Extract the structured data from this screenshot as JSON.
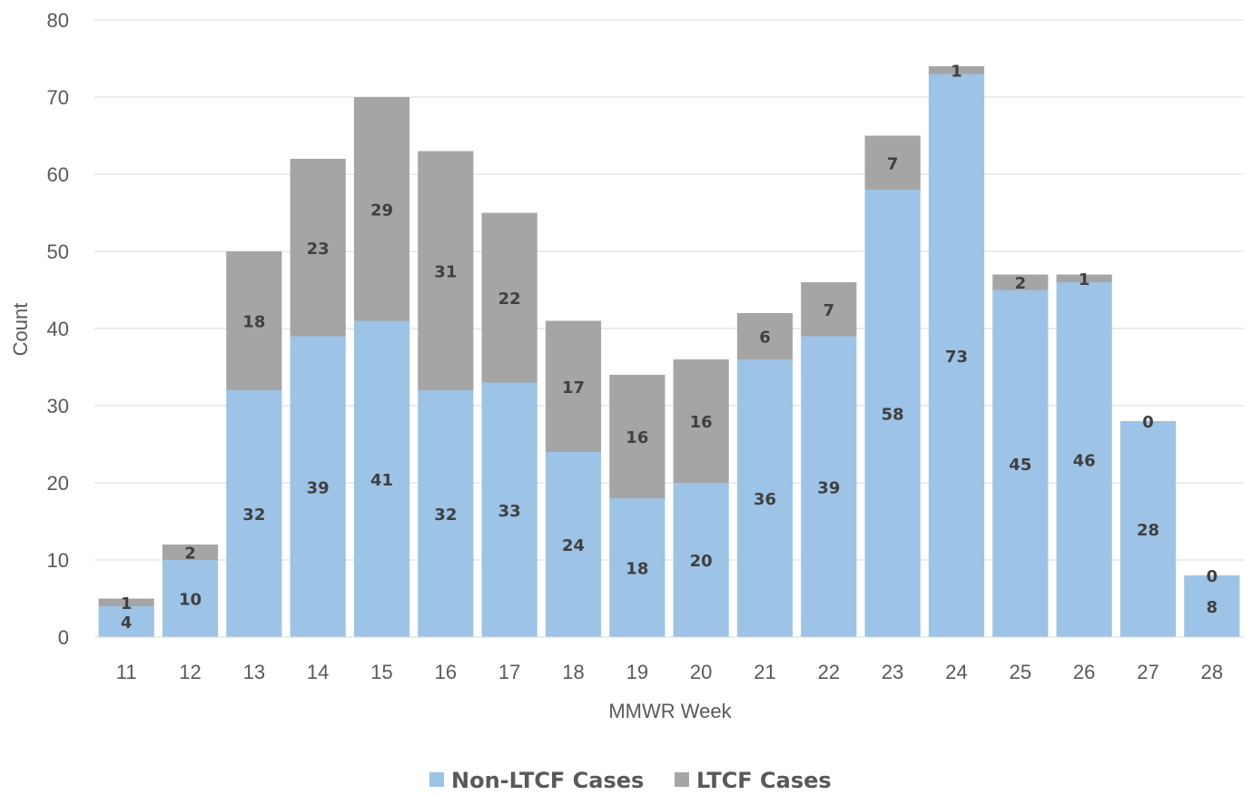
{
  "chart_data": {
    "type": "bar",
    "stacked": true,
    "categories": [
      "11",
      "12",
      "13",
      "14",
      "15",
      "16",
      "17",
      "18",
      "19",
      "20",
      "21",
      "22",
      "23",
      "24",
      "25",
      "26",
      "27",
      "28"
    ],
    "series": [
      {
        "name": "Non-LTCF Cases",
        "color": "#9dc3e6",
        "values": [
          4,
          10,
          32,
          39,
          41,
          32,
          33,
          24,
          18,
          20,
          36,
          39,
          58,
          73,
          45,
          46,
          28,
          8
        ]
      },
      {
        "name": "LTCF Cases",
        "color": "#a5a5a5",
        "values": [
          1,
          2,
          18,
          23,
          29,
          31,
          22,
          17,
          16,
          16,
          6,
          7,
          7,
          1,
          2,
          1,
          0,
          0
        ]
      }
    ],
    "xlabel": "MMWR Week",
    "ylabel": "Count",
    "ylim": [
      0,
      80
    ],
    "yticks": [
      0,
      10,
      20,
      30,
      40,
      50,
      60,
      70,
      80
    ],
    "grid": true,
    "legend": "bottom"
  }
}
